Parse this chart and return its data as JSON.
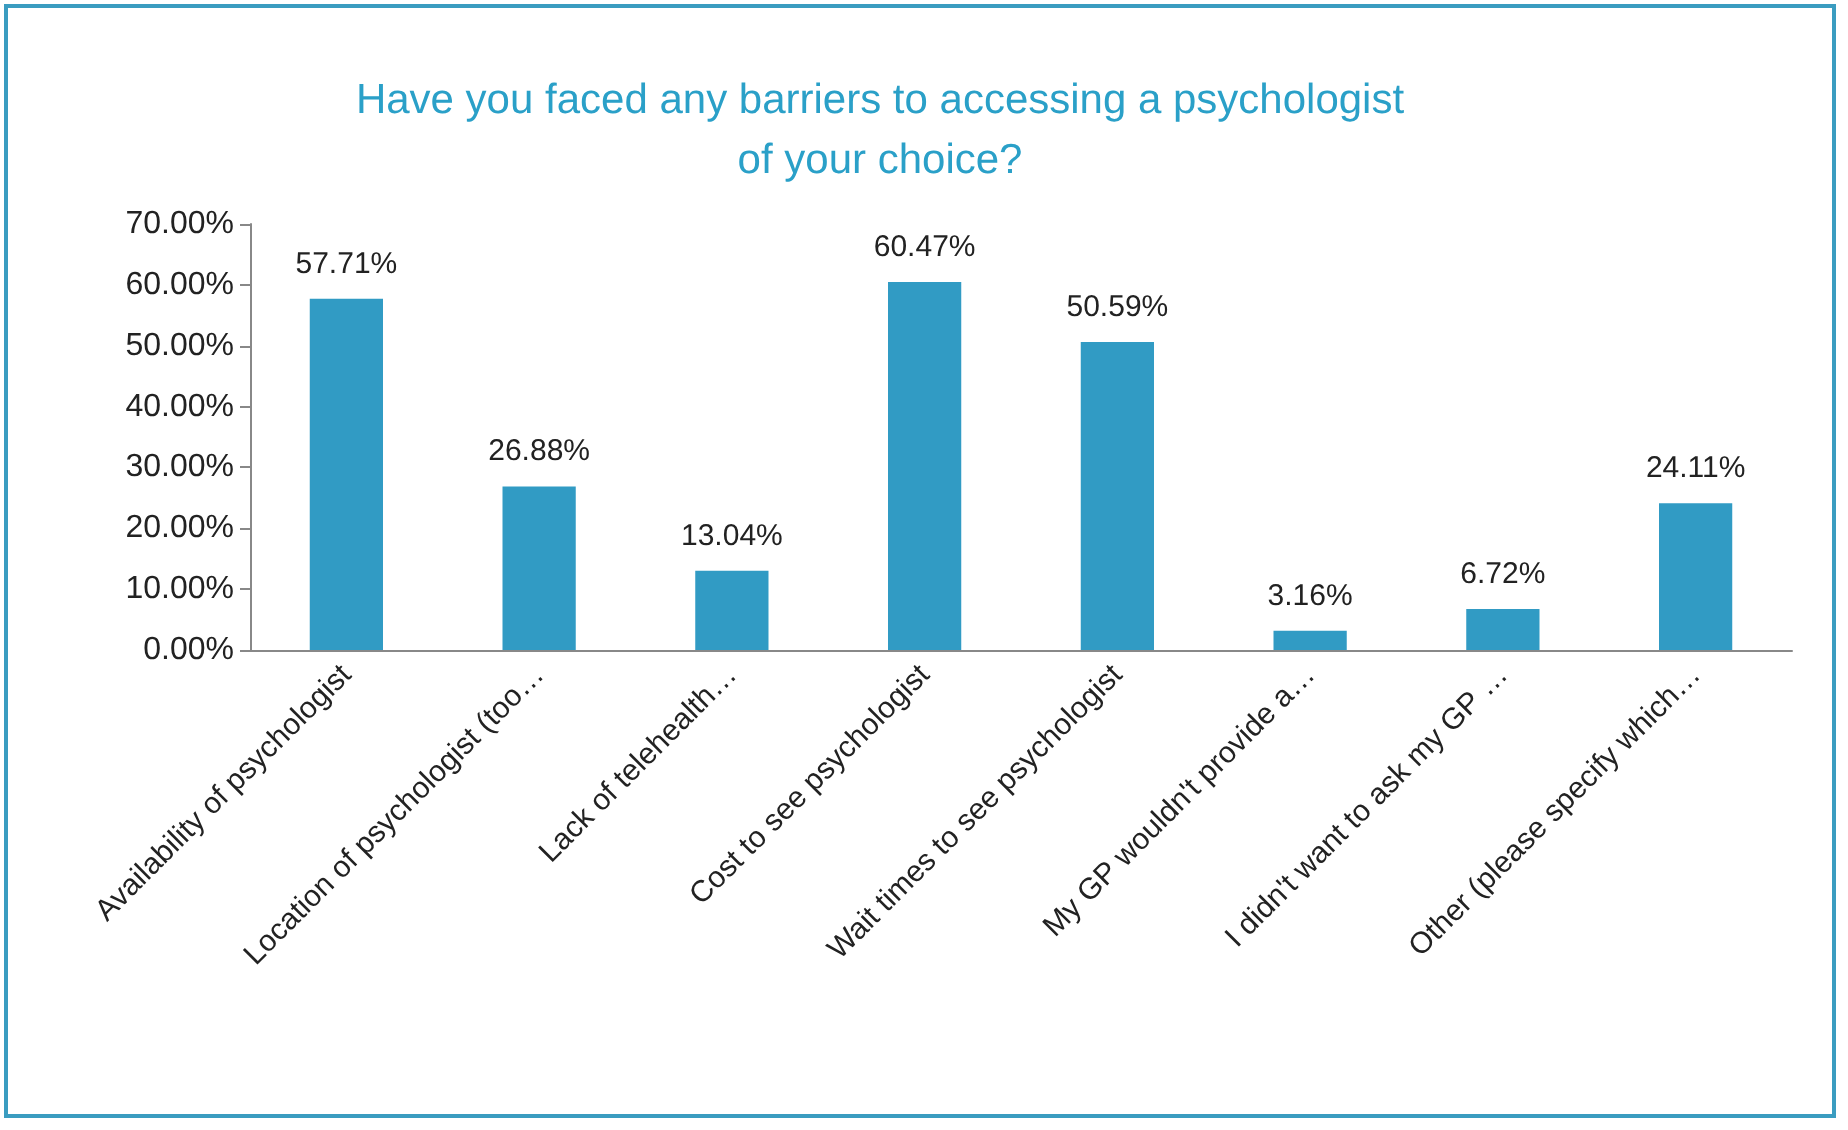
{
  "chart_data": {
    "type": "bar",
    "title": "Have you faced any barriers to accessing a psychologist\nof your choice?",
    "categories": [
      "Availability of psychologist",
      "Location of psychologist (too…",
      "Lack of telehealth…",
      "Cost to see psychologist",
      "Wait times to see psychologist",
      "My GP wouldn't provide a…",
      "I didn't want to ask my GP …",
      "Other (please specify which…"
    ],
    "values": [
      57.71,
      26.88,
      13.04,
      60.47,
      50.59,
      3.16,
      6.72,
      24.11
    ],
    "value_labels": [
      "57.71%",
      "26.88%",
      "13.04%",
      "60.47%",
      "50.59%",
      "3.16%",
      "6.72%",
      "24.11%"
    ],
    "color": "#319bc4",
    "ylim": [
      0,
      70
    ],
    "yticks": [
      {
        "value": 0,
        "label": "0.00%"
      },
      {
        "value": 10,
        "label": "10.00%"
      },
      {
        "value": 20,
        "label": "20.00%"
      },
      {
        "value": 30,
        "label": "30.00%"
      },
      {
        "value": 40,
        "label": "40.00%"
      },
      {
        "value": 50,
        "label": "50.00%"
      },
      {
        "value": 60,
        "label": "60.00%"
      },
      {
        "value": 70,
        "label": "70.00%"
      }
    ],
    "grid": false
  }
}
